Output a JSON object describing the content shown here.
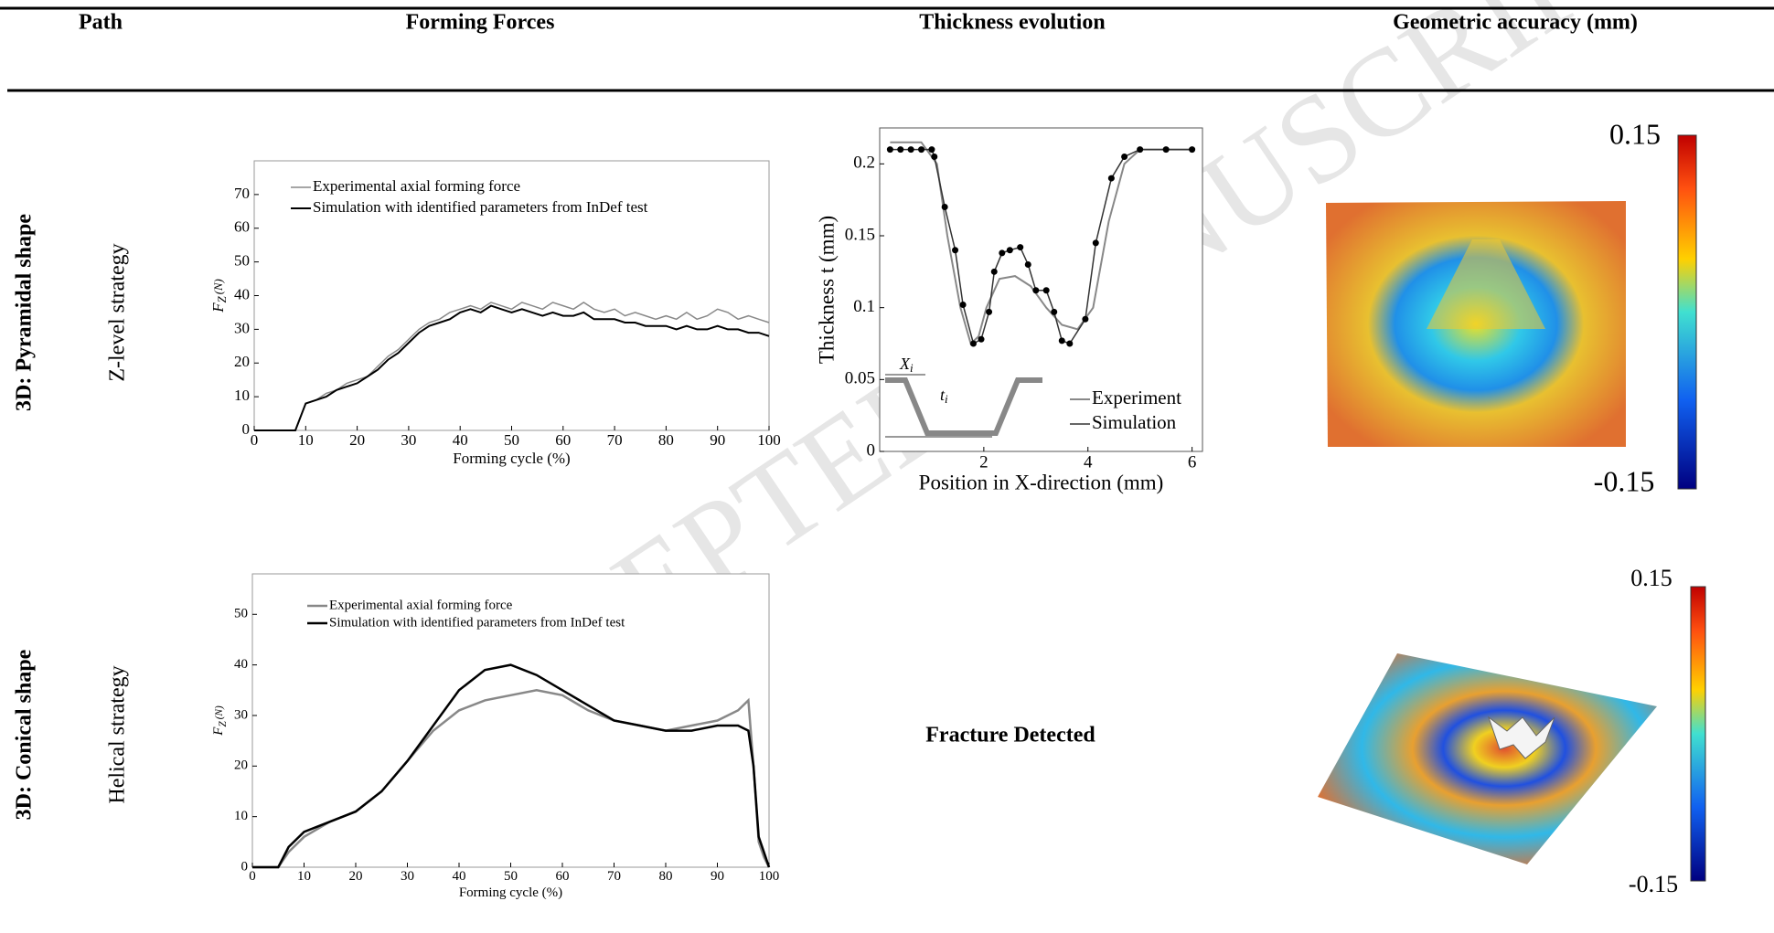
{
  "watermark": "ACCEPTED MANUSCRIPT",
  "table": {
    "headers": [
      "Path",
      "Forming Forces",
      "Thickness evolution",
      "Geometric accuracy (mm)"
    ],
    "rows": [
      {
        "shape": "3D: Pyramidal shape",
        "strategy": "Z-level strategy",
        "forces": {
          "type": "line",
          "xlabel": "Forming cycle (%)",
          "ylabel": {
            "symbol": "F",
            "subscript": "Z",
            "unit": "(N)"
          },
          "xlim": [
            0,
            100
          ],
          "ylim": [
            0,
            80
          ],
          "xticks": [
            0,
            10,
            20,
            30,
            40,
            50,
            60,
            70,
            80,
            90,
            100
          ],
          "yticks": [
            0,
            10,
            20,
            30,
            40,
            50,
            60,
            70
          ],
          "x": [
            0,
            2,
            4,
            6,
            8,
            10,
            12,
            14,
            16,
            18,
            20,
            22,
            24,
            26,
            28,
            30,
            32,
            34,
            36,
            38,
            40,
            42,
            44,
            46,
            48,
            50,
            52,
            54,
            56,
            58,
            60,
            62,
            64,
            66,
            68,
            70,
            72,
            74,
            76,
            78,
            80,
            82,
            84,
            86,
            88,
            90,
            92,
            94,
            96,
            98,
            100
          ],
          "series": [
            {
              "name": "Experimental axial forming force",
              "color": "#888888",
              "values": [
                0,
                0,
                0,
                0,
                0,
                8,
                9,
                11,
                12,
                14,
                15,
                16,
                19,
                22,
                24,
                27,
                30,
                32,
                33,
                35,
                36,
                37,
                36,
                38,
                37,
                36,
                38,
                37,
                36,
                38,
                37,
                36,
                38,
                36,
                35,
                36,
                34,
                35,
                34,
                33,
                34,
                33,
                35,
                33,
                34,
                36,
                35,
                33,
                34,
                33,
                32
              ]
            },
            {
              "name": "Simulation with identified parameters from InDef test",
              "color": "#000000",
              "values": [
                0,
                0,
                0,
                0,
                0,
                8,
                9,
                10,
                12,
                13,
                14,
                16,
                18,
                21,
                23,
                26,
                29,
                31,
                32,
                33,
                35,
                36,
                35,
                37,
                36,
                35,
                36,
                35,
                34,
                35,
                34,
                34,
                35,
                33,
                33,
                33,
                32,
                32,
                31,
                31,
                31,
                30,
                31,
                30,
                30,
                31,
                30,
                30,
                29,
                29,
                28
              ]
            }
          ]
        },
        "thickness": {
          "type": "line",
          "xlabel": "Position in X-direction (mm)",
          "ylabel": "Thickness t (mm)",
          "xlim": [
            0,
            6.2
          ],
          "ylim": [
            0,
            0.225
          ],
          "xticks": [
            2,
            4,
            6
          ],
          "yticks": [
            0,
            0.05,
            0.1,
            0.15,
            0.2
          ],
          "inset": {
            "x_symbol": "X",
            "x_sub": "i",
            "t_symbol": "t",
            "t_sub": "i"
          },
          "series": [
            {
              "name": "Experiment",
              "color": "#888888",
              "x": [
                0.2,
                0.8,
                1.1,
                1.3,
                1.55,
                1.75,
                1.9,
                2.05,
                2.3,
                2.6,
                2.9,
                3.2,
                3.5,
                3.8,
                4.1,
                4.4,
                4.7,
                5,
                6
              ],
              "values": [
                0.215,
                0.215,
                0.2,
                0.15,
                0.1,
                0.075,
                0.08,
                0.1,
                0.12,
                0.122,
                0.115,
                0.1,
                0.088,
                0.085,
                0.1,
                0.16,
                0.2,
                0.21,
                0.21
              ]
            },
            {
              "name": "Simulation",
              "color": "#333333",
              "x": [
                0.2,
                0.4,
                0.6,
                0.8,
                1.0,
                1.05,
                1.25,
                1.45,
                1.6,
                1.8,
                1.95,
                2.1,
                2.2,
                2.35,
                2.5,
                2.7,
                2.85,
                3.0,
                3.2,
                3.35,
                3.5,
                3.65,
                3.95,
                4.15,
                4.45,
                4.7,
                5,
                5.5,
                6
              ],
              "values": [
                0.21,
                0.21,
                0.21,
                0.21,
                0.21,
                0.205,
                0.17,
                0.14,
                0.102,
                0.075,
                0.078,
                0.097,
                0.125,
                0.138,
                0.14,
                0.142,
                0.13,
                0.112,
                0.112,
                0.097,
                0.077,
                0.075,
                0.092,
                0.145,
                0.19,
                0.205,
                0.21,
                0.21,
                0.21
              ]
            }
          ]
        },
        "accuracy": {
          "max": 0.15,
          "min": -0.15
        }
      },
      {
        "shape": "3D: Conical shape",
        "strategy": "Helical strategy",
        "forces": {
          "type": "line",
          "xlabel": "Forming cycle (%)",
          "ylabel": {
            "symbol": "F",
            "subscript": "Z",
            "unit": "(N)"
          },
          "xlim": [
            0,
            100
          ],
          "ylim": [
            0,
            58
          ],
          "xticks": [
            0,
            10,
            20,
            30,
            40,
            50,
            60,
            70,
            80,
            90,
            100
          ],
          "yticks": [
            0,
            10,
            20,
            30,
            40,
            50
          ],
          "x": [
            0,
            5,
            7,
            10,
            15,
            20,
            25,
            30,
            35,
            40,
            45,
            50,
            55,
            60,
            65,
            70,
            75,
            80,
            85,
            90,
            94,
            96,
            97,
            98,
            99,
            100
          ],
          "series": [
            {
              "name": "Experimental axial forming force",
              "color": "#888888",
              "values": [
                0,
                0,
                3,
                6,
                9,
                11,
                15,
                21,
                27,
                31,
                33,
                34,
                35,
                34,
                31,
                29,
                28,
                27,
                28,
                29,
                31,
                33,
                20,
                5,
                2,
                0
              ]
            },
            {
              "name": "Simulation with identified parameters from InDef test",
              "color": "#000000",
              "values": [
                0,
                0,
                4,
                7,
                9,
                11,
                15,
                21,
                28,
                35,
                39,
                40,
                38,
                35,
                32,
                29,
                28,
                27,
                27,
                28,
                28,
                27,
                20,
                6,
                3,
                0
              ]
            }
          ]
        },
        "thickness_text": "Fracture Detected",
        "accuracy": {
          "max": 0.15,
          "min": -0.15
        }
      }
    ]
  }
}
